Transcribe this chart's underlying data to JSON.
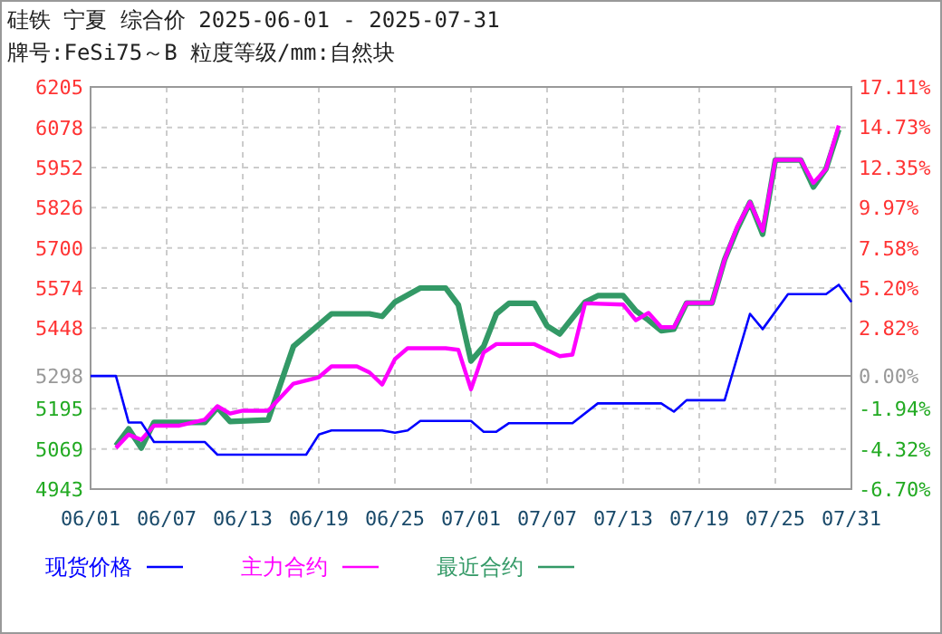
{
  "chart_data": {
    "type": "line",
    "title": "硅铁 宁夏 综合价 2025-06-01 - 2025-07-31",
    "subtitle": "牌号:FeSi75～B 粒度等级/mm:自然块",
    "xlim": [
      "2025-06-01",
      "2025-07-31"
    ],
    "xticks": [
      {
        "value": "2025-06-01",
        "label": "06/01"
      },
      {
        "value": "2025-06-07",
        "label": "06/07"
      },
      {
        "value": "2025-06-13",
        "label": "06/13"
      },
      {
        "value": "2025-06-19",
        "label": "06/19"
      },
      {
        "value": "2025-06-25",
        "label": "06/25"
      },
      {
        "value": "2025-07-01",
        "label": "07/01"
      },
      {
        "value": "2025-07-07",
        "label": "07/07"
      },
      {
        "value": "2025-07-13",
        "label": "07/13"
      },
      {
        "value": "2025-07-19",
        "label": "07/19"
      },
      {
        "value": "2025-07-25",
        "label": "07/25"
      },
      {
        "value": "2025-07-31",
        "label": "07/31"
      }
    ],
    "ylim": [
      4943,
      6205
    ],
    "yticks": [
      4943,
      5069,
      5195,
      5298,
      5448,
      5574,
      5700,
      5826,
      5952,
      6078,
      6205
    ],
    "y2lim": [
      -6.7,
      17.11
    ],
    "y2ticks": [
      {
        "value": -6.7,
        "label": "-6.70%"
      },
      {
        "value": -4.32,
        "label": "-4.32%"
      },
      {
        "value": -1.94,
        "label": "-1.94%"
      },
      {
        "value": 0,
        "label": "0.00%"
      },
      {
        "value": 2.82,
        "label": "2.82%"
      },
      {
        "value": 5.2,
        "label": "5.20%"
      },
      {
        "value": 7.58,
        "label": "7.58%"
      },
      {
        "value": 9.97,
        "label": "9.97%"
      },
      {
        "value": 12.35,
        "label": "12.35%"
      },
      {
        "value": 14.73,
        "label": "14.73%"
      },
      {
        "value": 17.11,
        "label": "17.11%"
      }
    ],
    "ref_lines": [
      {
        "axis": "y",
        "value": 5298,
        "color": "#999999"
      }
    ],
    "grid": true,
    "legend": "bottom",
    "marker": "none",
    "line_style": "solid",
    "series": [
      {
        "name": "现货价格",
        "color": "#0000ff",
        "x": [
          "2025-06-01",
          "2025-06-03",
          "2025-06-04",
          "2025-06-05",
          "2025-06-06",
          "2025-06-10",
          "2025-06-11",
          "2025-06-18",
          "2025-06-19",
          "2025-06-20",
          "2025-06-24",
          "2025-06-25",
          "2025-06-26",
          "2025-06-27",
          "2025-07-01",
          "2025-07-02",
          "2025-07-03",
          "2025-07-04",
          "2025-07-09",
          "2025-07-11",
          "2025-07-16",
          "2025-07-17",
          "2025-07-18",
          "2025-07-21",
          "2025-07-23",
          "2025-07-24",
          "2025-07-26",
          "2025-07-29",
          "2025-07-30",
          "2025-07-31"
        ],
        "values": [
          5298,
          5298,
          5152,
          5152,
          5091,
          5091,
          5051,
          5051,
          5114,
          5127,
          5127,
          5120,
          5127,
          5157,
          5157,
          5123,
          5123,
          5150,
          5150,
          5212,
          5212,
          5186,
          5222,
          5222,
          5493,
          5445,
          5555,
          5555,
          5584,
          5530
        ]
      },
      {
        "name": "主力合约",
        "color": "#ff00ff",
        "x": [
          "2025-06-03",
          "2025-06-04",
          "2025-06-05",
          "2025-06-06",
          "2025-06-08",
          "2025-06-10",
          "2025-06-11",
          "2025-06-12",
          "2025-06-13",
          "2025-06-15",
          "2025-06-17",
          "2025-06-19",
          "2025-06-20",
          "2025-06-22",
          "2025-06-23",
          "2025-06-24",
          "2025-06-25",
          "2025-06-26",
          "2025-06-29",
          "2025-06-30",
          "2025-07-01",
          "2025-07-02",
          "2025-07-03",
          "2025-07-06",
          "2025-07-08",
          "2025-07-09",
          "2025-07-10",
          "2025-07-13",
          "2025-07-14",
          "2025-07-15",
          "2025-07-16",
          "2025-07-17",
          "2025-07-18",
          "2025-07-20",
          "2025-07-21",
          "2025-07-22",
          "2025-07-23",
          "2025-07-24",
          "2025-07-25",
          "2025-07-27",
          "2025-07-28",
          "2025-07-29",
          "2025-07-30"
        ],
        "values": [
          5072,
          5114,
          5098,
          5142,
          5142,
          5161,
          5203,
          5180,
          5189,
          5189,
          5274,
          5294,
          5328,
          5328,
          5309,
          5271,
          5351,
          5385,
          5385,
          5380,
          5256,
          5372,
          5398,
          5398,
          5360,
          5365,
          5526,
          5522,
          5473,
          5496,
          5451,
          5451,
          5527,
          5527,
          5663,
          5767,
          5843,
          5754,
          5976,
          5976,
          5904,
          5948,
          6084
        ]
      },
      {
        "name": "最近合约",
        "color": "#339966",
        "x": [
          "2025-06-03",
          "2025-06-04",
          "2025-06-05",
          "2025-06-06",
          "2025-06-10",
          "2025-06-11",
          "2025-06-12",
          "2025-06-15",
          "2025-06-17",
          "2025-06-20",
          "2025-06-23",
          "2025-06-24",
          "2025-06-25",
          "2025-06-27",
          "2025-06-29",
          "2025-06-30",
          "2025-07-01",
          "2025-07-02",
          "2025-07-03",
          "2025-07-04",
          "2025-07-06",
          "2025-07-07",
          "2025-07-08",
          "2025-07-10",
          "2025-07-11",
          "2025-07-13",
          "2025-07-14",
          "2025-07-15",
          "2025-07-16",
          "2025-07-17",
          "2025-07-18",
          "2025-07-20",
          "2025-07-21",
          "2025-07-22",
          "2025-07-23",
          "2025-07-24",
          "2025-07-25",
          "2025-07-27",
          "2025-07-28",
          "2025-07-29",
          "2025-07-30"
        ],
        "values": [
          5079,
          5132,
          5072,
          5152,
          5152,
          5199,
          5155,
          5160,
          5391,
          5493,
          5493,
          5485,
          5530,
          5574,
          5574,
          5521,
          5345,
          5391,
          5493,
          5526,
          5526,
          5455,
          5430,
          5530,
          5550,
          5550,
          5502,
          5473,
          5440,
          5445,
          5527,
          5527,
          5663,
          5760,
          5843,
          5743,
          5976,
          5976,
          5891,
          5948,
          6071
        ]
      }
    ]
  }
}
